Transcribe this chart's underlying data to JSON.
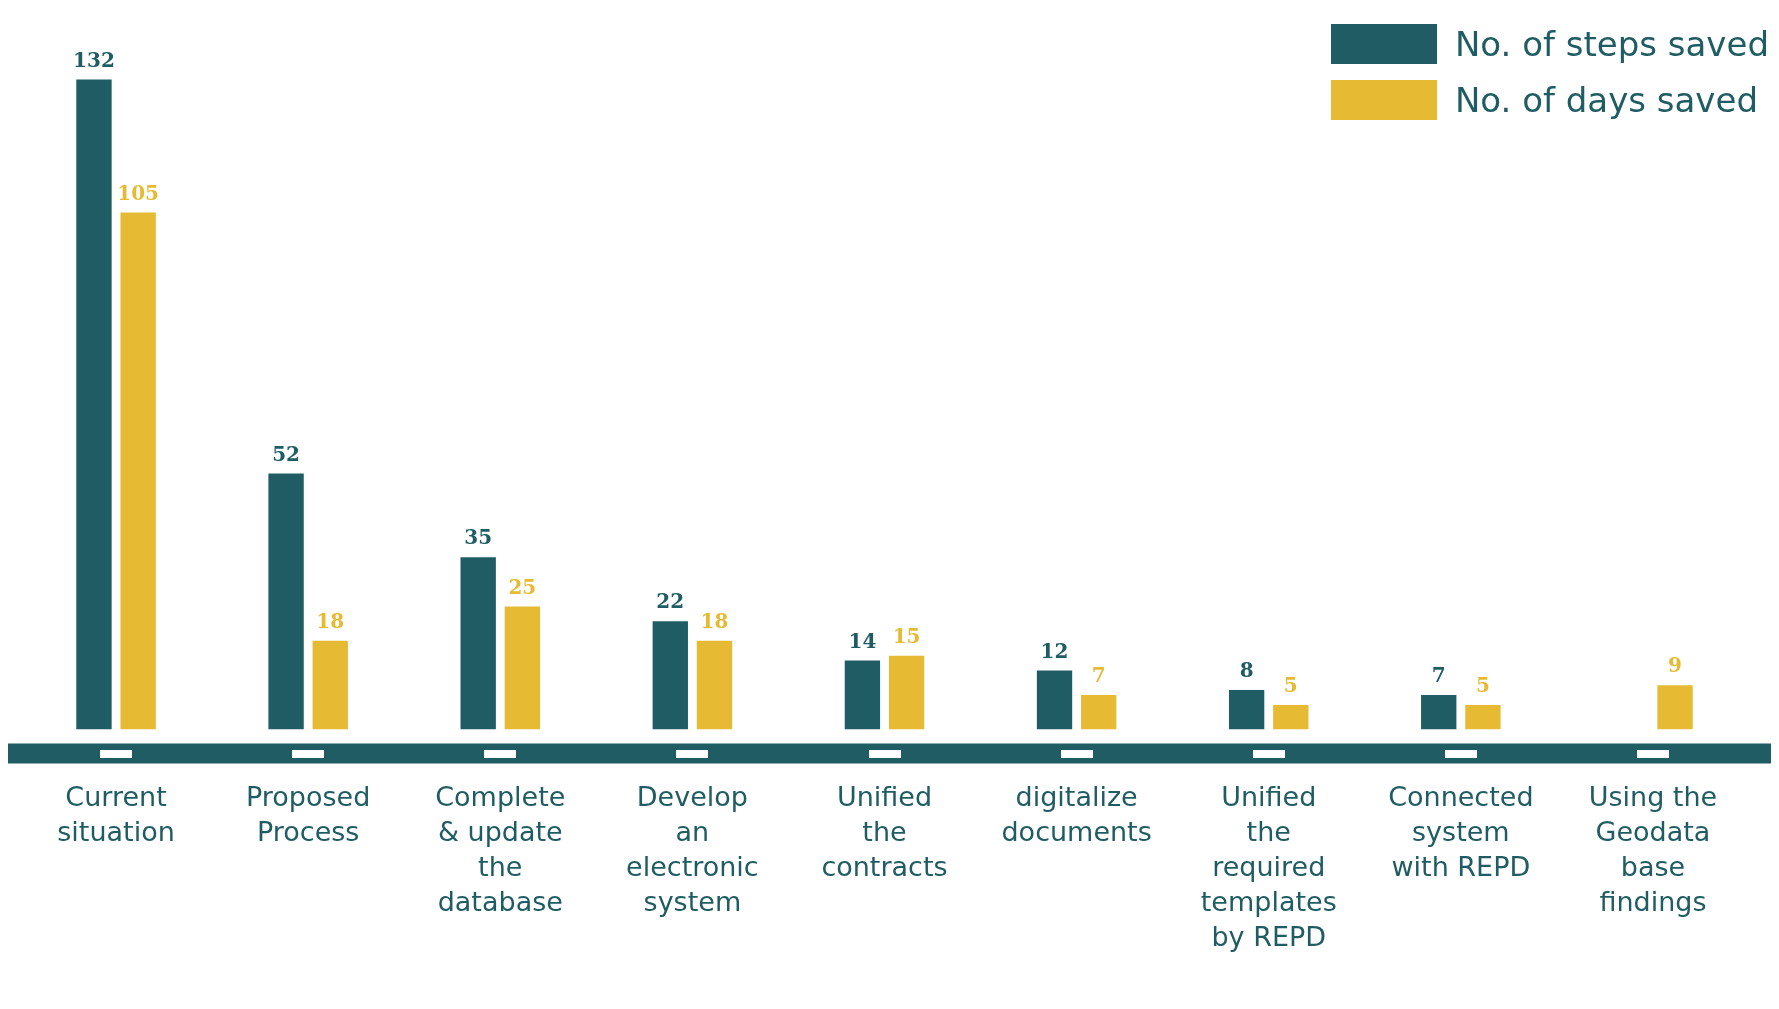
{
  "chart_data": {
    "type": "bar",
    "categories": [
      "Current situation",
      "Proposed Process",
      "Complete & update the database",
      "Develop an electronic system",
      "Unified the contracts",
      "digitalize documents",
      "Unified the required templates by REPD",
      "Connected system with REPD",
      "Using the Geodata base findings"
    ],
    "series": [
      {
        "name": "No. of steps saved",
        "color": "#1f5c63",
        "values": [
          132,
          52,
          35,
          22,
          14,
          12,
          8,
          7,
          null
        ]
      },
      {
        "name": "No. of days saved",
        "color": "#e6bb33",
        "values": [
          105,
          18,
          25,
          18,
          15,
          7,
          5,
          5,
          9
        ]
      }
    ],
    "data_labels": true,
    "legend": "top right",
    "grid": false
  }
}
